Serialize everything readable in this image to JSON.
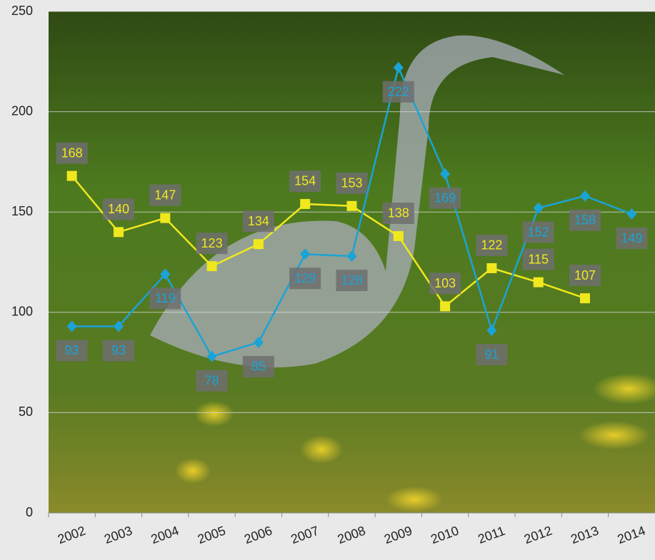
{
  "chart_data": {
    "type": "line",
    "categories": [
      "2002",
      "2003",
      "2004",
      "2005",
      "2006",
      "2007",
      "2008",
      "2009",
      "2010",
      "2011",
      "2012",
      "2013",
      "2014"
    ],
    "series": [
      {
        "color": "#f0e81e",
        "marker": "square",
        "values": [
          168,
          140,
          147,
          123,
          134,
          154,
          153,
          138,
          103,
          122,
          115,
          107,
          null
        ]
      },
      {
        "color": "#1ba3d6",
        "marker": "diamond",
        "values": [
          93,
          93,
          119,
          78,
          85,
          129,
          128,
          222,
          169,
          91,
          152,
          158,
          149
        ]
      }
    ],
    "ylim": [
      0,
      250
    ],
    "yticks": [
      0,
      50,
      100,
      150,
      200,
      250
    ],
    "grid": true
  }
}
